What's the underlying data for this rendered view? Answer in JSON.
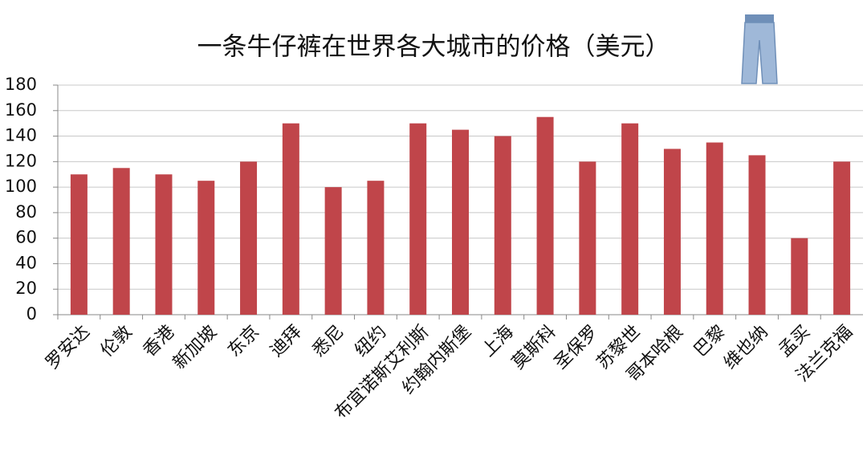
{
  "chart_data": {
    "type": "bar",
    "title": "一条牛仔裤在世界各大城市的价格（美元）",
    "categories": [
      "罗安达",
      "伦敦",
      "香港",
      "新加坡",
      "东京",
      "迪拜",
      "悉尼",
      "纽约",
      "布宜诺斯艾利斯",
      "约翰内斯堡",
      "上海",
      "莫斯科",
      "圣保罗",
      "苏黎世",
      "哥本哈根",
      "巴黎",
      "维也纳",
      "孟买",
      "法兰克福"
    ],
    "values": [
      110,
      115,
      110,
      105,
      120,
      150,
      100,
      105,
      150,
      145,
      140,
      155,
      120,
      150,
      130,
      135,
      125,
      60,
      120
    ],
    "color": "#c0454a",
    "ylim": [
      0,
      180
    ],
    "yticks": [
      0,
      20,
      40,
      60,
      80,
      100,
      120,
      140,
      160,
      180
    ],
    "grid": true
  }
}
